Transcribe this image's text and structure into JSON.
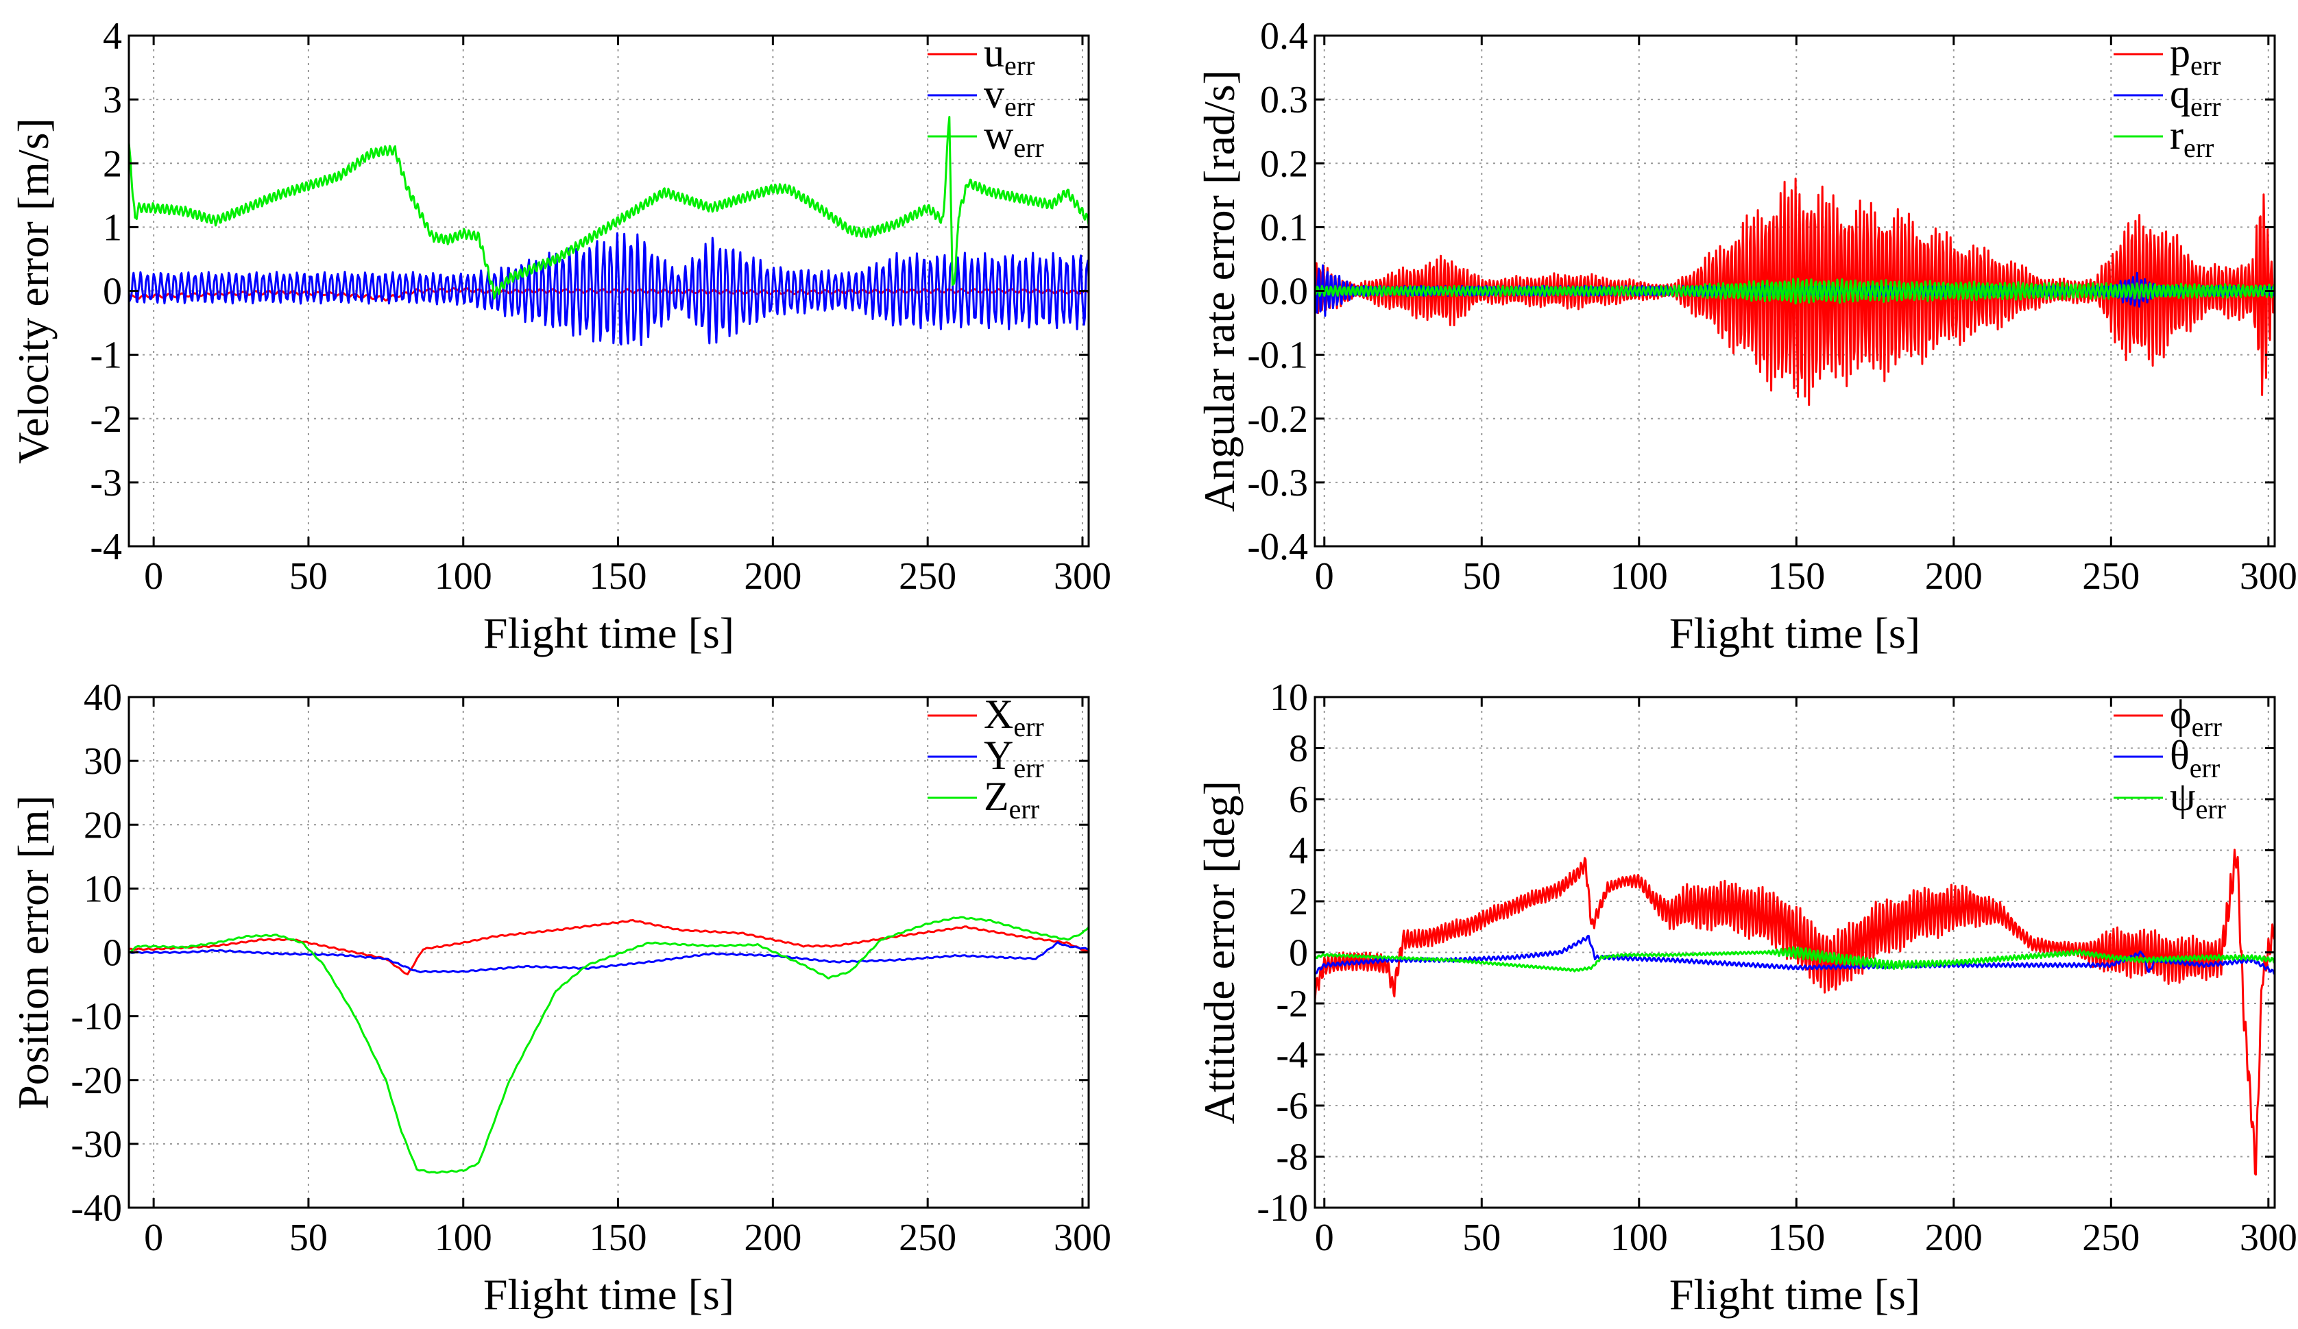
{
  "chart_data": [
    {
      "type": "line",
      "id": "velocity",
      "xlabel": "Flight time [s]",
      "ylabel": "Velocity error [m/s]",
      "xlim": [
        -8,
        302
      ],
      "ylim": [
        -4,
        4
      ],
      "xticks": [
        0,
        50,
        100,
        150,
        200,
        250,
        300
      ],
      "yticks": [
        -4,
        -3,
        -2,
        -1,
        0,
        1,
        2,
        3,
        4
      ],
      "ytick_labels": [
        "-4",
        "-3",
        "-2",
        "-1",
        "0",
        "1",
        "2",
        "3",
        "4"
      ],
      "grid": true,
      "legend_position": "top-right",
      "series": [
        {
          "name": "u",
          "sub": "err",
          "color": "#ff0000",
          "x": [
            -8,
            0,
            20,
            40,
            60,
            75,
            85,
            100,
            110,
            120,
            150,
            200,
            250,
            280,
            302
          ],
          "y": [
            -0.1,
            -0.08,
            -0.05,
            -0.02,
            -0.05,
            -0.12,
            0.0,
            0.02,
            -0.02,
            0.0,
            0.0,
            -0.02,
            0.0,
            0.0,
            -0.02
          ],
          "noise": {
            "amp": 0.03,
            "period": 4
          }
        },
        {
          "name": "v",
          "sub": "err",
          "color": "#0000ff",
          "x": [
            -8,
            0,
            50,
            80,
            100,
            110,
            140,
            200,
            230,
            260,
            280,
            302
          ],
          "y": [
            0.05,
            0.05,
            0.05,
            0.05,
            0.03,
            0.0,
            0.0,
            0.0,
            0.0,
            0.0,
            0.0,
            0.0
          ],
          "noise": {
            "amp": 0.25,
            "period": 2.2,
            "envelope": [
              [
                -8,
                0.25
              ],
              [
                100,
                0.25
              ],
              [
                110,
                0.35
              ],
              [
                155,
                1.0
              ],
              [
                170,
                0.3
              ],
              [
                180,
                0.9
              ],
              [
                200,
                0.4
              ],
              [
                225,
                0.3
              ],
              [
                240,
                0.6
              ],
              [
                260,
                0.6
              ],
              [
                302,
                0.6
              ]
            ]
          }
        },
        {
          "name": "w",
          "sub": "err",
          "color": "#00ee00",
          "x": [
            -8,
            -6,
            -5,
            0,
            10,
            20,
            25,
            40,
            60,
            70,
            75,
            78,
            82,
            90,
            95,
            100,
            105,
            110,
            115,
            130,
            150,
            165,
            180,
            200,
            205,
            215,
            225,
            230,
            240,
            250,
            255,
            257,
            258,
            259,
            260,
            263,
            270,
            280,
            290,
            295,
            302
          ],
          "y": [
            2.3,
            1.1,
            1.3,
            1.3,
            1.25,
            1.1,
            1.2,
            1.5,
            1.8,
            2.15,
            2.2,
            2.2,
            1.6,
            0.85,
            0.8,
            0.9,
            0.85,
            -0.05,
            0.2,
            0.5,
            1.1,
            1.55,
            1.3,
            1.6,
            1.6,
            1.3,
            0.95,
            0.9,
            1.05,
            1.3,
            1.1,
            2.8,
            0.05,
            0.3,
            1.2,
            1.7,
            1.55,
            1.45,
            1.35,
            1.55,
            1.1
          ],
          "noise": {
            "amp": 0.08,
            "period": 1.5
          }
        }
      ]
    },
    {
      "type": "line",
      "id": "angular",
      "xlabel": "Flight time [s]",
      "ylabel": "Angular rate error [rad/s]",
      "xlim": [
        -3,
        302
      ],
      "ylim": [
        -0.4,
        0.4
      ],
      "xticks": [
        0,
        50,
        100,
        150,
        200,
        250,
        300
      ],
      "yticks": [
        -0.4,
        -0.3,
        -0.2,
        -0.1,
        0.0,
        0.1,
        0.2,
        0.3,
        0.4
      ],
      "ytick_labels": [
        "-0.4",
        "-0.3",
        "-0.2",
        "-0.1",
        "0.0",
        "0.1",
        "0.2",
        "0.3",
        "0.4"
      ],
      "grid": true,
      "legend_position": "top-right",
      "series": [
        {
          "name": "p",
          "sub": "err",
          "color": "#ff0000",
          "x": [
            -3,
            302
          ],
          "y": [
            0.0,
            0.0
          ],
          "noise": {
            "amp": 0.01,
            "period": 1.2,
            "envelope": [
              [
                -3,
                0.05
              ],
              [
                10,
                0.01
              ],
              [
                20,
                0.03
              ],
              [
                40,
                0.06
              ],
              [
                50,
                0.02
              ],
              [
                80,
                0.03
              ],
              [
                110,
                0.01
              ],
              [
                120,
                0.05
              ],
              [
                140,
                0.15
              ],
              [
                150,
                0.19
              ],
              [
                165,
                0.15
              ],
              [
                180,
                0.14
              ],
              [
                200,
                0.09
              ],
              [
                215,
                0.06
              ],
              [
                230,
                0.02
              ],
              [
                245,
                0.02
              ],
              [
                255,
                0.12
              ],
              [
                265,
                0.12
              ],
              [
                280,
                0.04
              ],
              [
                295,
                0.05
              ],
              [
                298,
                0.2
              ],
              [
                302,
                0.02
              ]
            ]
          }
        },
        {
          "name": "q",
          "sub": "err",
          "color": "#0000ff",
          "x": [
            -3,
            302
          ],
          "y": [
            0.0,
            0.0
          ],
          "noise": {
            "amp": 0.006,
            "period": 1.3,
            "envelope": [
              [
                -3,
                0.05
              ],
              [
                10,
                0.008
              ],
              [
                250,
                0.008
              ],
              [
                258,
                0.03
              ],
              [
                265,
                0.008
              ],
              [
                302,
                0.008
              ]
            ]
          }
        },
        {
          "name": "r",
          "sub": "err",
          "color": "#00ee00",
          "x": [
            -3,
            302
          ],
          "y": [
            0.0,
            0.0
          ],
          "noise": {
            "amp": 0.01,
            "period": 1.4,
            "envelope": [
              [
                -3,
                0.008
              ],
              [
                110,
                0.008
              ],
              [
                150,
                0.02
              ],
              [
                200,
                0.015
              ],
              [
                302,
                0.01
              ]
            ]
          }
        }
      ]
    },
    {
      "type": "line",
      "id": "position",
      "xlabel": "Flight time [s]",
      "ylabel": "Position error [m]",
      "xlim": [
        -8,
        302
      ],
      "ylim": [
        -40,
        40
      ],
      "xticks": [
        0,
        50,
        100,
        150,
        200,
        250,
        300
      ],
      "yticks": [
        -40,
        -30,
        -20,
        -10,
        0,
        10,
        20,
        30,
        40
      ],
      "ytick_labels": [
        "-40",
        "-30",
        "-20",
        "-10",
        "0",
        "10",
        "20",
        "30",
        "40"
      ],
      "grid": true,
      "legend_position": "top-right",
      "series": [
        {
          "name": "X",
          "sub": "err",
          "color": "#ff0000",
          "x": [
            -8,
            0,
            20,
            35,
            45,
            60,
            75,
            82,
            87,
            100,
            110,
            130,
            155,
            170,
            190,
            210,
            220,
            240,
            255,
            262,
            280,
            295,
            302
          ],
          "y": [
            0.5,
            0.5,
            1.0,
            2.0,
            2.0,
            0.5,
            -1.0,
            -3.5,
            0.5,
            1.5,
            2.5,
            3.5,
            5.0,
            3.5,
            3.0,
            1.0,
            1.0,
            2.5,
            3.5,
            4.0,
            2.5,
            1.5,
            0.0
          ],
          "noise": {
            "amp": 0.1,
            "period": 3
          }
        },
        {
          "name": "Y",
          "sub": "err",
          "color": "#0000ff",
          "x": [
            -8,
            10,
            20,
            40,
            60,
            75,
            85,
            100,
            120,
            140,
            160,
            180,
            200,
            220,
            240,
            260,
            285,
            292,
            295,
            302
          ],
          "y": [
            0.0,
            0.0,
            0.3,
            -0.2,
            -0.4,
            -1.0,
            -3.0,
            -3.0,
            -2.2,
            -2.5,
            -1.5,
            -0.2,
            -0.5,
            -1.5,
            -1.2,
            -0.5,
            -1.0,
            1.5,
            1.0,
            0.5
          ],
          "noise": {
            "amp": 0.1,
            "period": 3
          }
        },
        {
          "name": "Z",
          "sub": "err",
          "color": "#00ee00",
          "x": [
            -8,
            -5,
            10,
            20,
            30,
            40,
            48,
            55,
            65,
            75,
            80,
            85,
            90,
            100,
            105,
            115,
            130,
            140,
            160,
            180,
            195,
            210,
            218,
            225,
            235,
            250,
            260,
            270,
            285,
            295,
            300,
            302
          ],
          "y": [
            0.0,
            1.0,
            0.8,
            1.5,
            2.5,
            2.7,
            1.5,
            -2.0,
            -10.0,
            -20.0,
            -28.0,
            -34.0,
            -34.5,
            -34.2,
            -33.0,
            -20.0,
            -6.0,
            -2.0,
            1.5,
            1.0,
            1.2,
            -2.0,
            -4.0,
            -3.0,
            2.0,
            4.5,
            5.5,
            5.0,
            3.0,
            2.0,
            3.0,
            4.0
          ],
          "noise": {
            "amp": 0.1,
            "period": 3
          }
        }
      ]
    },
    {
      "type": "line",
      "id": "attitude",
      "xlabel": "Flight time [s]",
      "ylabel": "Attitude error [deg]",
      "xlim": [
        -3,
        302
      ],
      "ylim": [
        -10,
        10
      ],
      "xticks": [
        0,
        50,
        100,
        150,
        200,
        250,
        300
      ],
      "yticks": [
        -10,
        -8,
        -6,
        -4,
        -2,
        0,
        2,
        4,
        6,
        8,
        10
      ],
      "ytick_labels": [
        "-10",
        "-8",
        "-6",
        "-4",
        "-2",
        "0",
        "2",
        "4",
        "6",
        "8",
        "10"
      ],
      "grid": true,
      "legend_position": "top-right",
      "series": [
        {
          "name": "ϕ",
          "sub": "err",
          "color": "#ff0000",
          "x": [
            -3,
            0,
            10,
            20,
            22,
            25,
            30,
            45,
            60,
            75,
            80,
            83,
            85,
            90,
            95,
            100,
            105,
            110,
            115,
            130,
            145,
            155,
            162,
            175,
            190,
            205,
            215,
            225,
            245,
            260,
            270,
            285,
            290,
            292,
            296,
            298,
            302
          ],
          "y": [
            -1.5,
            -0.5,
            -0.3,
            -0.5,
            -1.5,
            0.5,
            0.5,
            1.0,
            1.8,
            2.5,
            3.0,
            3.5,
            1.0,
            2.5,
            2.8,
            2.8,
            2.0,
            1.5,
            1.8,
            1.8,
            1.2,
            0.0,
            -0.5,
            0.8,
            1.5,
            1.8,
            1.5,
            0.3,
            0.0,
            0.0,
            -0.3,
            -0.2,
            4.0,
            -2.0,
            -8.5,
            -1.0,
            1.0
          ],
          "noise": {
            "amp": 0.5,
            "period": 1.2,
            "envelope": [
              [
                -3,
                0.4
              ],
              [
                20,
                0.4
              ],
              [
                40,
                0.4
              ],
              [
                85,
                0.3
              ],
              [
                95,
                0.2
              ],
              [
                105,
                0.4
              ],
              [
                115,
                0.9
              ],
              [
                145,
                1.2
              ],
              [
                150,
                1.3
              ],
              [
                165,
                1.3
              ],
              [
                175,
                1.2
              ],
              [
                200,
                1.0
              ],
              [
                220,
                0.3
              ],
              [
                240,
                0.3
              ],
              [
                250,
                1.0
              ],
              [
                270,
                1.0
              ],
              [
                285,
                0.8
              ],
              [
                302,
                0.5
              ]
            ]
          }
        },
        {
          "name": "θ",
          "sub": "err",
          "color": "#0000ff",
          "x": [
            -3,
            0,
            20,
            40,
            60,
            75,
            84,
            86,
            90,
            110,
            150,
            200,
            250,
            260,
            262,
            264,
            280,
            295,
            302
          ],
          "y": [
            -0.8,
            -0.5,
            -0.3,
            -0.3,
            -0.2,
            0.0,
            0.6,
            -0.2,
            -0.2,
            -0.3,
            -0.6,
            -0.5,
            -0.5,
            0.0,
            -0.8,
            -0.3,
            -0.5,
            -0.3,
            -0.8
          ],
          "noise": {
            "amp": 0.08,
            "period": 1.5
          }
        },
        {
          "name": "ψ",
          "sub": "err",
          "color": "#00ee00",
          "x": [
            -3,
            0,
            20,
            40,
            60,
            80,
            85,
            88,
            95,
            110,
            140,
            150,
            160,
            180,
            200,
            220,
            240,
            250,
            260,
            280,
            295,
            302
          ],
          "y": [
            -0.2,
            -0.1,
            -0.2,
            -0.3,
            -0.5,
            -0.7,
            -0.6,
            -0.2,
            -0.1,
            -0.1,
            0.0,
            0.0,
            -0.2,
            -0.5,
            -0.4,
            -0.2,
            0.0,
            -0.2,
            -0.3,
            -0.2,
            -0.2,
            -0.3
          ],
          "noise": {
            "amp": 0.1,
            "period": 1.3,
            "envelope": [
              [
                -3,
                0.05
              ],
              [
                140,
                0.05
              ],
              [
                150,
                0.25
              ],
              [
                175,
                0.2
              ],
              [
                200,
                0.1
              ],
              [
                302,
                0.1
              ]
            ]
          }
        }
      ]
    }
  ]
}
